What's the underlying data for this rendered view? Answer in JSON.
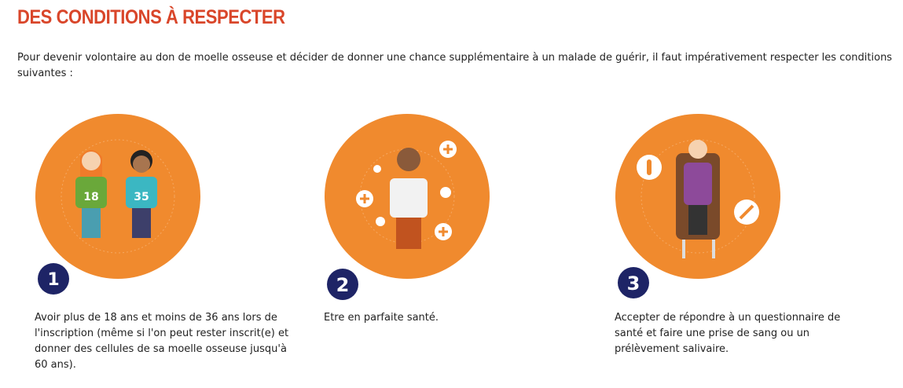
{
  "title": "DES CONDITIONS À RESPECTER",
  "intro": "Pour devenir volontaire au don de moelle osseuse et décider de donner une chance supplémentaire à un malade de guérir, il faut impérativement respecter les conditions suivantes :",
  "colors": {
    "accent": "#d9462a",
    "circle": "#f08a2e",
    "badge": "#1e2466"
  },
  "steps": [
    {
      "number": "1",
      "illustration_labels": [
        "18",
        "35"
      ],
      "text": "Avoir plus de 18 ans et moins de 36 ans lors de l'inscription (même si l'on peut rester inscrit(e) et donner des cellules de sa moelle osseuse jusqu'à 60 ans)."
    },
    {
      "number": "2",
      "text": "Etre en parfaite santé."
    },
    {
      "number": "3",
      "text": "Accepter de répondre à un questionnaire de santé et faire une prise de sang ou un prélèvement salivaire."
    }
  ]
}
